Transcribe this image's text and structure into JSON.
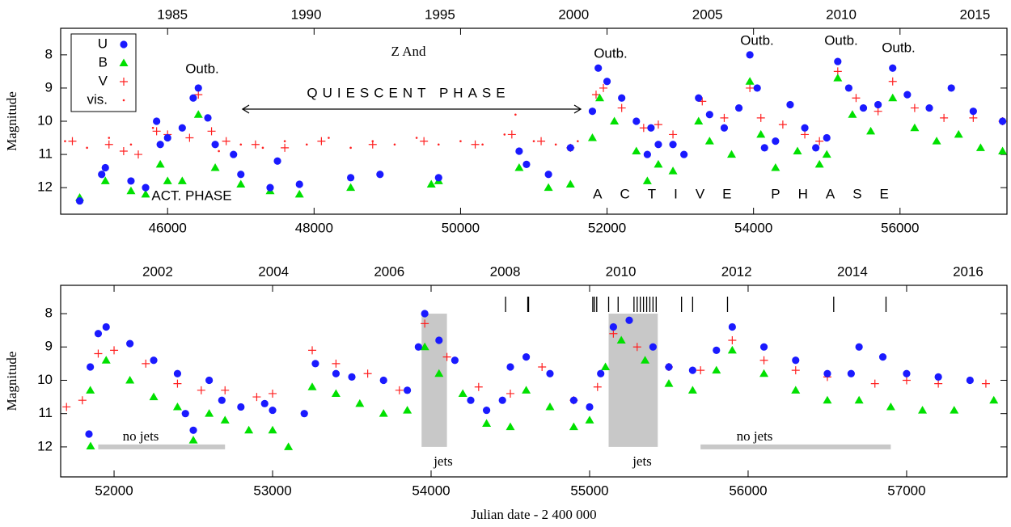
{
  "chart_data": [
    {
      "type": "scatter",
      "ylabel": "Magnitude",
      "xlim": [
        44540,
        57460
      ],
      "ylim": [
        12.8,
        7.2
      ],
      "xticks": [
        46000,
        48000,
        50000,
        52000,
        54000,
        56000
      ],
      "yticks": [
        8,
        9,
        10,
        11,
        12
      ],
      "x2ticks": [
        {
          "value": 46066,
          "label": "1985"
        },
        {
          "value": 47892,
          "label": "1990"
        },
        {
          "value": 49718,
          "label": "1995"
        },
        {
          "value": 51544,
          "label": "2000"
        },
        {
          "value": 53371,
          "label": "2005"
        },
        {
          "value": 55197,
          "label": "2010"
        },
        {
          "value": 57023,
          "label": "2015"
        }
      ],
      "annotations": [
        "Z And",
        "QUIESCENT PHASE",
        "ACT. PHASE",
        "ACTIVE PHASE",
        "Outb.",
        "Outb.",
        "Outb.",
        "Outb.",
        "Outb."
      ],
      "legend": "upper left",
      "series": [
        {
          "name": "U",
          "color": "#1a1aff",
          "marker": "circle",
          "x": [
            44800,
            45100,
            45150,
            45500,
            45700,
            45850,
            45900,
            46000,
            46200,
            46350,
            46420,
            46550,
            46650,
            46900,
            47000,
            47400,
            47500,
            47800,
            48500,
            48900,
            49700,
            50800,
            50900,
            51200,
            51500,
            51800,
            51880,
            52000,
            52200,
            52400,
            52550,
            52600,
            52700,
            52900,
            53050,
            53250,
            53400,
            53600,
            53800,
            53950,
            54050,
            54150,
            54300,
            54500,
            54700,
            54850,
            55000,
            55150,
            55300,
            55500,
            55700,
            55900,
            56100,
            56400,
            56700,
            57000,
            57400
          ],
          "values": [
            12.4,
            11.6,
            11.4,
            11.8,
            12.0,
            10.0,
            10.7,
            10.5,
            10.2,
            9.3,
            9.0,
            9.9,
            10.7,
            11.0,
            11.6,
            12.0,
            11.2,
            11.9,
            11.7,
            11.6,
            11.7,
            10.9,
            11.3,
            11.6,
            10.8,
            9.7,
            8.4,
            8.8,
            9.3,
            10.0,
            11.0,
            10.2,
            10.7,
            10.7,
            11.0,
            9.3,
            9.8,
            10.2,
            9.6,
            8.0,
            9.0,
            10.8,
            10.6,
            9.5,
            10.2,
            10.8,
            10.5,
            8.2,
            9.0,
            9.6,
            9.5,
            8.4,
            9.2,
            9.6,
            9.0,
            9.7,
            10.0
          ]
        },
        {
          "name": "B",
          "color": "#00e000",
          "marker": "triangle",
          "x": [
            44800,
            45150,
            45500,
            45700,
            45900,
            46000,
            46200,
            46420,
            46650,
            47000,
            47400,
            47800,
            48500,
            49600,
            49700,
            50800,
            51200,
            51500,
            51800,
            51900,
            52100,
            52400,
            52550,
            52700,
            52900,
            53250,
            53400,
            53700,
            53950,
            54100,
            54300,
            54600,
            54900,
            55000,
            55150,
            55350,
            55600,
            55900,
            56200,
            56500,
            56800,
            57100,
            57400
          ],
          "values": [
            12.3,
            11.8,
            12.1,
            12.2,
            11.3,
            11.8,
            11.8,
            9.8,
            11.4,
            11.9,
            12.1,
            12.2,
            12.0,
            11.9,
            11.8,
            11.4,
            12.0,
            11.9,
            10.5,
            9.3,
            10.0,
            10.9,
            11.8,
            11.3,
            11.5,
            10.0,
            10.6,
            11.0,
            8.8,
            10.4,
            11.4,
            10.9,
            11.3,
            11.0,
            8.7,
            9.8,
            10.3,
            9.3,
            10.2,
            10.6,
            10.4,
            10.8,
            10.9
          ]
        },
        {
          "name": "V",
          "color": "#ff2020",
          "marker": "plus",
          "x": [
            44700,
            45200,
            45400,
            45600,
            45850,
            46000,
            46300,
            46420,
            46600,
            46800,
            47200,
            47600,
            48100,
            48800,
            49500,
            50200,
            50700,
            51100,
            51500,
            51850,
            51950,
            52200,
            52500,
            52700,
            52900,
            53300,
            53600,
            53950,
            54100,
            54400,
            54700,
            54900,
            55150,
            55400,
            55700,
            55900,
            56200,
            56600,
            57000,
            57400
          ],
          "values": [
            10.6,
            10.7,
            10.9,
            11.0,
            10.3,
            10.4,
            10.5,
            9.2,
            10.3,
            10.6,
            10.7,
            10.8,
            10.6,
            10.7,
            10.6,
            10.7,
            10.4,
            10.6,
            10.8,
            9.2,
            9.0,
            9.6,
            10.2,
            10.1,
            10.4,
            9.4,
            9.9,
            9.0,
            9.9,
            10.1,
            10.4,
            10.6,
            8.5,
            9.3,
            9.7,
            8.8,
            9.6,
            9.9,
            9.9,
            10.0
          ]
        },
        {
          "name": "vis.",
          "color": "#ff2020",
          "marker": "dot",
          "x": [
            44600,
            44900,
            45200,
            45500,
            45800,
            46700,
            47000,
            47300,
            47600,
            47900,
            48200,
            48500,
            48800,
            49100,
            49400,
            49700,
            50000,
            50300,
            50600,
            50750,
            51000,
            51300,
            51600
          ],
          "values": [
            10.6,
            10.8,
            10.5,
            10.7,
            10.2,
            10.9,
            10.7,
            10.8,
            10.6,
            10.7,
            10.5,
            10.8,
            10.6,
            10.7,
            10.5,
            10.7,
            10.6,
            10.7,
            10.4,
            9.8,
            10.6,
            10.7,
            10.6
          ]
        }
      ]
    },
    {
      "type": "scatter",
      "xlabel": "Julian date - 2 400 000",
      "ylabel": "Magnitude",
      "xlim": [
        51663,
        57633
      ],
      "ylim": [
        12.9,
        7.15
      ],
      "xticks": [
        52000,
        53000,
        54000,
        55000,
        56000,
        57000
      ],
      "yticks": [
        8,
        9,
        10,
        11,
        12
      ],
      "x2ticks": [
        {
          "value": 52275,
          "label": "2002"
        },
        {
          "value": 53006,
          "label": "2004"
        },
        {
          "value": 53736,
          "label": "2006"
        },
        {
          "value": 54467,
          "label": "2008"
        },
        {
          "value": 55197,
          "label": "2010"
        },
        {
          "value": 55927,
          "label": "2012"
        },
        {
          "value": 56658,
          "label": "2014"
        },
        {
          "value": 57388,
          "label": "2016"
        }
      ],
      "jet_epochs": [
        54470,
        54610,
        54615,
        55020,
        55030,
        55045,
        55120,
        55180,
        55280,
        55300,
        55320,
        55340,
        55360,
        55380,
        55400,
        55420,
        55580,
        55650,
        55870,
        56540,
        56870
      ],
      "jets": [
        [
          53940,
          54100
        ],
        [
          55120,
          55430
        ]
      ],
      "no_jets": [
        [
          51900,
          52700
        ],
        [
          55700,
          56900
        ]
      ],
      "annotations": [
        "no jets",
        "no jets",
        "jets",
        "jets"
      ],
      "series": [
        {
          "name": "U",
          "color": "#1a1aff",
          "marker": "circle",
          "x": [
            51850,
            51900,
            51950,
            52100,
            52250,
            52400,
            52450,
            52500,
            52600,
            52680,
            52800,
            52950,
            53000,
            53200,
            53270,
            53400,
            53500,
            53700,
            53850,
            53920,
            53960,
            54050,
            54150,
            54250,
            54350,
            54450,
            54500,
            54600,
            54750,
            54900,
            55000,
            55070,
            55150,
            55250,
            55400,
            55500,
            55650,
            55800,
            55900,
            56100,
            56300,
            56500,
            56650,
            56700,
            56850,
            57000,
            57200,
            57400
          ],
          "values": [
            9.6,
            8.6,
            8.4,
            8.9,
            9.4,
            9.8,
            11.0,
            11.5,
            10.0,
            10.6,
            10.8,
            10.7,
            10.9,
            11.0,
            9.5,
            9.8,
            9.9,
            10.0,
            10.3,
            9.0,
            8.0,
            8.8,
            9.4,
            10.6,
            10.9,
            10.6,
            9.6,
            9.3,
            9.8,
            10.6,
            10.8,
            9.8,
            8.4,
            8.2,
            9.0,
            9.6,
            9.7,
            9.1,
            8.4,
            9.0,
            9.4,
            9.8,
            9.8,
            9.0,
            9.3,
            9.8,
            9.9,
            10.0
          ]
        },
        {
          "name": "B",
          "color": "#00e000",
          "marker": "triangle",
          "x": [
            51850,
            51950,
            52100,
            52250,
            52400,
            52500,
            52600,
            52700,
            52850,
            53000,
            53100,
            53250,
            53400,
            53550,
            53700,
            53850,
            53960,
            54050,
            54200,
            54350,
            54500,
            54600,
            54750,
            54900,
            55000,
            55100,
            55200,
            55350,
            55500,
            55650,
            55800,
            55900,
            56100,
            56300,
            56500,
            56700,
            56900,
            57100,
            57300,
            57550
          ],
          "values": [
            10.3,
            9.4,
            10.0,
            10.5,
            10.8,
            11.8,
            11.0,
            11.2,
            11.5,
            11.5,
            12.0,
            10.2,
            10.4,
            10.7,
            11.0,
            10.9,
            9.0,
            9.8,
            10.4,
            11.3,
            11.4,
            10.3,
            10.8,
            11.4,
            11.2,
            9.6,
            8.8,
            9.4,
            10.1,
            10.3,
            9.7,
            9.1,
            9.8,
            10.3,
            10.6,
            10.6,
            10.8,
            10.9,
            10.9,
            10.6
          ]
        },
        {
          "name": "V",
          "color": "#ff2020",
          "marker": "plus",
          "x": [
            51700,
            51800,
            51900,
            52000,
            52200,
            52400,
            52550,
            52700,
            52900,
            53000,
            53250,
            53400,
            53600,
            53800,
            53960,
            54100,
            54300,
            54500,
            54700,
            54900,
            55050,
            55150,
            55300,
            55500,
            55700,
            55900,
            56100,
            56300,
            56500,
            56800,
            57000,
            57200,
            57500
          ],
          "values": [
            10.8,
            10.6,
            9.2,
            9.1,
            9.5,
            10.1,
            10.3,
            10.3,
            10.5,
            10.4,
            9.1,
            9.5,
            9.8,
            10.3,
            8.3,
            9.3,
            10.2,
            10.4,
            9.6,
            10.6,
            10.2,
            8.6,
            9.0,
            9.6,
            9.7,
            8.8,
            9.4,
            9.7,
            9.9,
            10.1,
            10.0,
            10.1,
            10.1
          ]
        }
      ]
    }
  ]
}
